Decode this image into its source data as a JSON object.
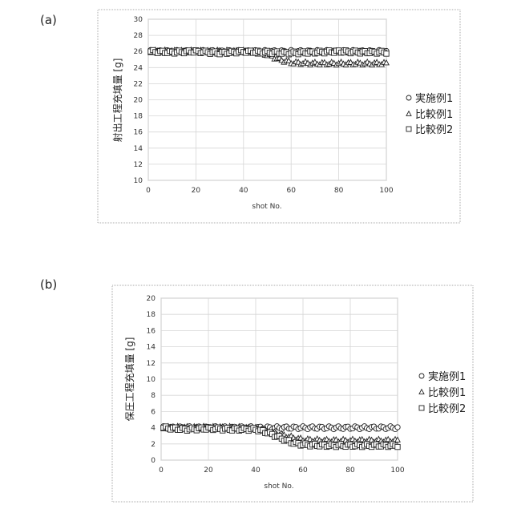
{
  "chart_data": [
    {
      "panel_label": "(a)",
      "type": "scatter",
      "xlabel": "shot No.",
      "ylabel": "射出工程充填量 [g]",
      "xlim": [
        0,
        100
      ],
      "ylim": [
        10,
        30
      ],
      "x_ticks": [
        "0",
        "20",
        "40",
        "60",
        "80",
        "100"
      ],
      "y_ticks": [
        "10",
        "12",
        "14",
        "16",
        "18",
        "20",
        "22",
        "24",
        "26",
        "28",
        "30"
      ],
      "grid": true,
      "legend_position": "right",
      "series": [
        {
          "name": "実施例1",
          "marker": "circle",
          "x": [
            1,
            10,
            20,
            30,
            40,
            50,
            60,
            70,
            80,
            90,
            100
          ],
          "y": [
            26,
            26,
            26,
            26,
            26,
            26,
            26,
            26,
            26,
            26,
            26
          ]
        },
        {
          "name": "比較例1",
          "marker": "triangle",
          "x": [
            1,
            10,
            20,
            30,
            40,
            45,
            50,
            55,
            60,
            70,
            80,
            90,
            100
          ],
          "y": [
            26,
            26,
            26,
            26,
            26,
            25.9,
            25.6,
            25,
            24.6,
            24.5,
            24.5,
            24.5,
            24.5
          ]
        },
        {
          "name": "比較例2",
          "marker": "square",
          "x": [
            1,
            10,
            20,
            30,
            40,
            50,
            60,
            70,
            80,
            90,
            100
          ],
          "y": [
            26,
            25.9,
            26,
            25.8,
            26,
            25.9,
            25.8,
            25.9,
            26,
            25.9,
            25.9
          ]
        }
      ]
    },
    {
      "panel_label": "(b)",
      "type": "scatter",
      "xlabel": "shot No.",
      "ylabel": "保圧工程充填量 [g]",
      "xlim": [
        0,
        100
      ],
      "ylim": [
        0,
        20
      ],
      "x_ticks": [
        "0",
        "20",
        "40",
        "60",
        "80",
        "100"
      ],
      "y_ticks": [
        "0",
        "2",
        "4",
        "6",
        "8",
        "10",
        "12",
        "14",
        "16",
        "18",
        "20"
      ],
      "grid": true,
      "legend_position": "right",
      "series": [
        {
          "name": "実施例1",
          "marker": "circle",
          "x": [
            1,
            10,
            20,
            30,
            40,
            50,
            60,
            70,
            80,
            90,
            100
          ],
          "y": [
            4,
            4,
            4,
            4,
            4,
            4,
            4,
            4,
            4,
            4,
            4
          ]
        },
        {
          "name": "比較例1",
          "marker": "triangle",
          "x": [
            1,
            10,
            20,
            30,
            40,
            45,
            50,
            55,
            60,
            70,
            80,
            90,
            100
          ],
          "y": [
            4,
            4,
            4,
            4,
            3.9,
            3.6,
            3.2,
            2.8,
            2.5,
            2.4,
            2.4,
            2.4,
            2.4
          ]
        },
        {
          "name": "比較例2",
          "marker": "square",
          "x": [
            1,
            10,
            20,
            30,
            40,
            45,
            50,
            55,
            60,
            70,
            80,
            90,
            100
          ],
          "y": [
            4,
            3.8,
            3.9,
            3.8,
            3.8,
            3.4,
            2.8,
            2.2,
            1.9,
            1.8,
            1.8,
            1.8,
            1.8
          ]
        }
      ]
    }
  ]
}
